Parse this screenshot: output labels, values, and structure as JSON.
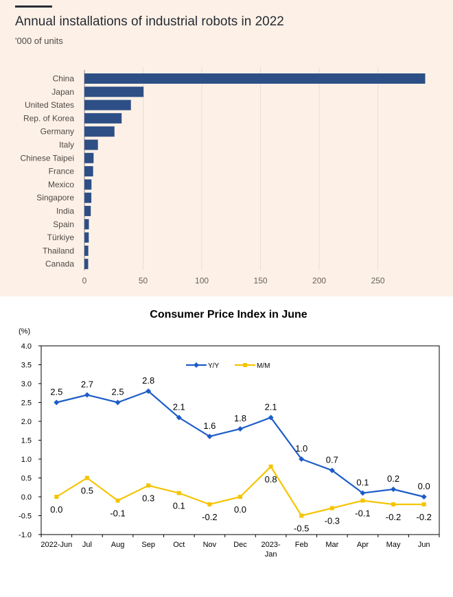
{
  "chart_data": [
    {
      "type": "bar",
      "orientation": "horizontal",
      "title": "Annual installations of industrial robots in 2022",
      "subtitle": "'000 of units",
      "categories": [
        "China",
        "Japan",
        "United States",
        "Rep. of Korea",
        "Germany",
        "Italy",
        "Chinese Taipei",
        "France",
        "Mexico",
        "Singapore",
        "India",
        "Spain",
        "Türkiye",
        "Thailand",
        "Canada"
      ],
      "values": [
        290.3,
        50.4,
        39.6,
        31.7,
        25.6,
        11.5,
        7.8,
        7.4,
        6.0,
        5.9,
        5.4,
        3.8,
        3.7,
        3.3,
        3.2
      ],
      "xlim": [
        0,
        290
      ],
      "xticks": [
        "0",
        "50",
        "100",
        "150",
        "200",
        "250"
      ],
      "grid": "vertical",
      "colors": {
        "background": "#fdf1e7",
        "bar": "#2d4f86",
        "grid": "#e7ddd6"
      }
    },
    {
      "type": "line",
      "title": "Consumer Price Index in June",
      "ylabel": "(%)",
      "categories": [
        "2022-Jun",
        "Jul",
        "Aug",
        "Sep",
        "Oct",
        "Nov",
        "Dec",
        "2023-\nJan",
        "Feb",
        "Mar",
        "Apr",
        "May",
        "Jun"
      ],
      "ylim": [
        -1.0,
        4.0
      ],
      "yticks": [
        "4.0",
        "3.5",
        "3.0",
        "2.5",
        "2.0",
        "1.5",
        "1.0",
        "0.5",
        "0.0",
        "-0.5",
        "-1.0"
      ],
      "legend": "top-center",
      "series": [
        {
          "name": "Y/Y",
          "values": [
            2.5,
            2.7,
            2.5,
            2.8,
            2.1,
            1.6,
            1.8,
            2.1,
            1.0,
            0.7,
            0.1,
            0.2,
            0.0
          ],
          "labels": [
            "2.5",
            "2.7",
            "2.5",
            "2.8",
            "2.1",
            "1.6",
            "1.8",
            "2.1",
            "1.0",
            "0.7",
            "0.1",
            "0.2",
            "0.0"
          ],
          "color": "#1c5cc8"
        },
        {
          "name": "M/M",
          "values": [
            0.0,
            0.5,
            -0.1,
            0.3,
            0.1,
            -0.2,
            0.0,
            0.8,
            -0.5,
            -0.3,
            -0.1,
            -0.2,
            -0.2
          ],
          "labels": [
            "0.0",
            "0.5",
            "-0.1",
            "0.3",
            "0.1",
            "-0.2",
            "0.0",
            "0.8",
            "-0.5",
            "-0.3",
            "-0.1",
            "-0.2",
            "-0.2"
          ],
          "color": "#f5c400"
        }
      ]
    }
  ]
}
